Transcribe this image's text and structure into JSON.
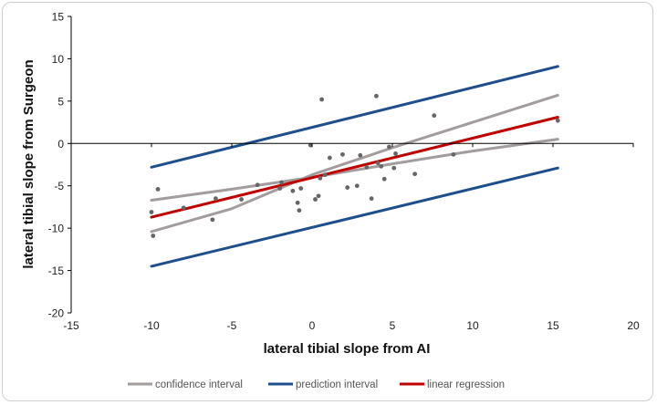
{
  "chart_data": {
    "type": "scatter",
    "title": "",
    "xlabel": "lateral tibial slope from AI",
    "ylabel": "lateral tibial slope from Surgeon",
    "xlim": [
      -15,
      20
    ],
    "ylim": [
      -20,
      15
    ],
    "xticks": [
      "-15",
      "-10",
      "-5",
      "0",
      "5",
      "10",
      "15",
      "20"
    ],
    "yticks": [
      "-20",
      "-15",
      "-10",
      "-5",
      "0",
      "5",
      "10",
      "15"
    ],
    "grid": false,
    "legend_position": "bottom",
    "colors": {
      "points": "#666666",
      "confidence_interval": "#a39c9c",
      "prediction_interval": "#1f4e8c",
      "linear_regression": "#c00000",
      "axis": "#000000"
    },
    "points": [
      {
        "x": -10.0,
        "y": -8.1
      },
      {
        "x": -9.9,
        "y": -10.9
      },
      {
        "x": -9.6,
        "y": -5.4
      },
      {
        "x": -8.0,
        "y": -7.6
      },
      {
        "x": -6.2,
        "y": -9.0
      },
      {
        "x": -6.0,
        "y": -6.5
      },
      {
        "x": -4.4,
        "y": -6.6
      },
      {
        "x": -3.4,
        "y": -4.9
      },
      {
        "x": -2.0,
        "y": -5.3
      },
      {
        "x": -1.9,
        "y": -4.6
      },
      {
        "x": -1.2,
        "y": -5.6
      },
      {
        "x": -0.9,
        "y": -7.0
      },
      {
        "x": -0.8,
        "y": -7.9
      },
      {
        "x": -0.7,
        "y": -5.3
      },
      {
        "x": -0.1,
        "y": -0.2
      },
      {
        "x": 0.2,
        "y": -6.6
      },
      {
        "x": 0.4,
        "y": -6.2
      },
      {
        "x": 0.5,
        "y": -4.1
      },
      {
        "x": 0.6,
        "y": 5.2
      },
      {
        "x": 0.8,
        "y": -3.7
      },
      {
        "x": 1.1,
        "y": -1.7
      },
      {
        "x": 1.9,
        "y": -1.3
      },
      {
        "x": 2.2,
        "y": -5.2
      },
      {
        "x": 2.8,
        "y": -5.0
      },
      {
        "x": 3.0,
        "y": -1.4
      },
      {
        "x": 3.4,
        "y": -2.8
      },
      {
        "x": 3.7,
        "y": -6.5
      },
      {
        "x": 4.0,
        "y": 5.6
      },
      {
        "x": 4.1,
        "y": -2.3
      },
      {
        "x": 4.3,
        "y": -2.7
      },
      {
        "x": 4.5,
        "y": -4.2
      },
      {
        "x": 4.8,
        "y": -0.4
      },
      {
        "x": 5.1,
        "y": -2.9
      },
      {
        "x": 5.2,
        "y": -1.2
      },
      {
        "x": 6.4,
        "y": -3.6
      },
      {
        "x": 7.6,
        "y": 3.3
      },
      {
        "x": 8.8,
        "y": -1.3
      },
      {
        "x": 15.3,
        "y": 2.7
      }
    ],
    "series": [
      {
        "name": "confidence interval",
        "role": "ci_upper",
        "x": [
          -10,
          -5,
          0,
          5,
          10,
          15.3
        ],
        "y": [
          -10.4,
          -7.7,
          -3.7,
          -0.5,
          2.5,
          5.7
        ]
      },
      {
        "name": "confidence interval",
        "role": "ci_lower",
        "x": [
          -10,
          -5,
          0,
          5,
          10,
          15.3
        ],
        "y": [
          -6.7,
          -5.4,
          -4.0,
          -2.4,
          -0.9,
          0.5
        ]
      },
      {
        "name": "prediction interval",
        "role": "pi_upper",
        "x": [
          -10,
          15.3
        ],
        "y": [
          -2.8,
          9.1
        ]
      },
      {
        "name": "prediction interval",
        "role": "pi_lower",
        "x": [
          -10,
          15.3
        ],
        "y": [
          -14.5,
          -2.9
        ]
      },
      {
        "name": "linear regression",
        "role": "fit",
        "x": [
          -10,
          15.3
        ],
        "y": [
          -8.7,
          3.1
        ]
      }
    ],
    "legend": [
      {
        "label": "confidence interval",
        "color": "#a39c9c"
      },
      {
        "label": "prediction interval",
        "color": "#1f4e8c"
      },
      {
        "label": "linear regression",
        "color": "#c00000"
      }
    ]
  }
}
